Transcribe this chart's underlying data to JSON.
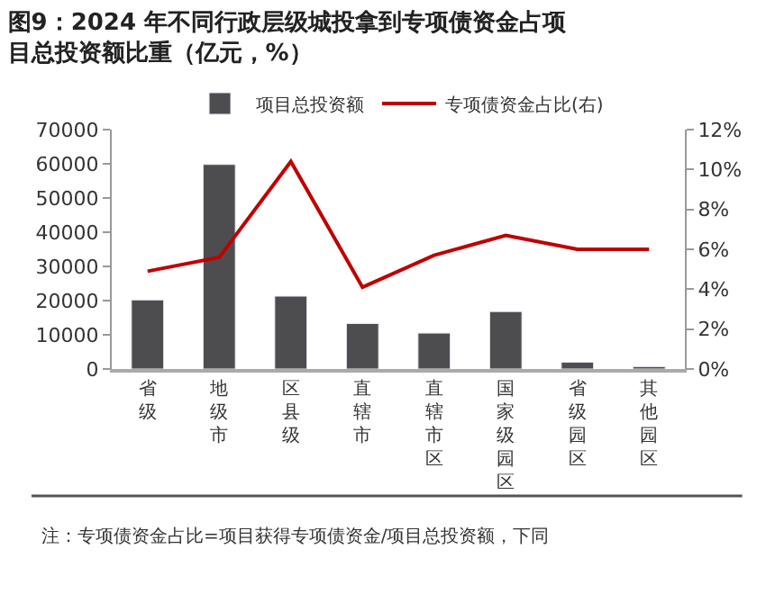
{
  "chart_data": {
    "type": "bar",
    "title": "图9：2024 年不同行政层级城投拿到专项债资金占项目总投资额比重（亿元，%）",
    "categories": [
      "省级",
      "地级市",
      "区县级",
      "直辖市",
      "直辖市区",
      "国家级园区",
      "省级园区",
      "其他园区"
    ],
    "series": [
      {
        "name": "项目总投资额",
        "color": "#4d4d4f",
        "values": [
          20200,
          59800,
          21300,
          13300,
          10500,
          16800,
          2000,
          700
        ]
      },
      {
        "name": "专项债资金占比(右)",
        "type": "line",
        "axis": "y2",
        "color": "#c00000",
        "values": [
          4.9,
          5.6,
          10.4,
          4.1,
          5.7,
          6.7,
          6.0,
          6.0
        ]
      }
    ],
    "ylim": [
      0,
      70000
    ],
    "yticks": [
      0,
      10000,
      20000,
      30000,
      40000,
      50000,
      60000,
      70000
    ],
    "y2lim": [
      0,
      12
    ],
    "y2ticks": [
      {
        "value": 0,
        "label": "0%"
      },
      {
        "value": 2,
        "label": "2%"
      },
      {
        "value": 4,
        "label": "4%"
      },
      {
        "value": 6,
        "label": "6%"
      },
      {
        "value": 8,
        "label": "8%"
      },
      {
        "value": 10,
        "label": "10%"
      },
      {
        "value": 12,
        "label": "12%"
      }
    ],
    "annotations": [
      "注：专项债资金占比=项目获得专项债资金/项目总投资额，下同"
    ],
    "legend": "top",
    "marker": "none"
  }
}
